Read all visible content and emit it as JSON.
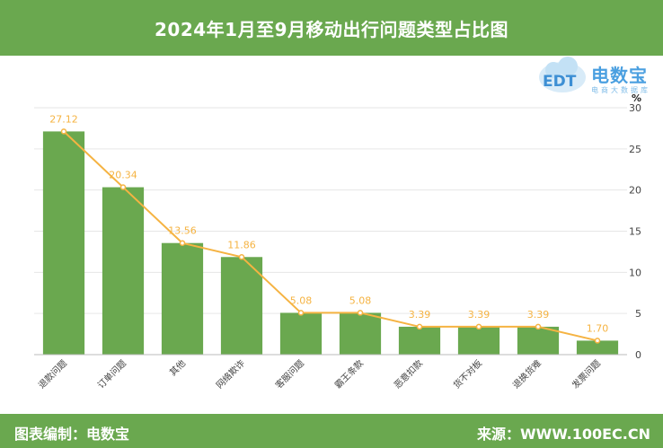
{
  "header": {
    "title": "2024年1月至9月移动出行问题类型占比图"
  },
  "footer": {
    "left": "图表编制：电数宝",
    "right": "来源：WWW.100EC.CN"
  },
  "logo": {
    "text": "电数宝",
    "sub": "电商大数据库",
    "mark": "EDT"
  },
  "colors": {
    "bar": "#6aa84f",
    "line": "#f5b342",
    "header": "#6aa84f"
  },
  "chart_data": {
    "type": "bar",
    "categories": [
      "退款问题",
      "订单问题",
      "其他",
      "网络欺诈",
      "客服问题",
      "霸王条款",
      "恶意扣款",
      "货不对板",
      "退换货难",
      "发票问题"
    ],
    "values": [
      27.12,
      20.34,
      13.56,
      11.86,
      5.08,
      5.08,
      3.39,
      3.39,
      3.39,
      1.7
    ],
    "value_labels": [
      "27.12",
      "20.34",
      "13.56",
      "11.86",
      "5.08",
      "5.08",
      "3.39",
      "3.39",
      "3.39",
      "1.70"
    ],
    "overlay": "line",
    "ylim": [
      0,
      30
    ],
    "yticks": [
      "0",
      "5",
      "10",
      "15",
      "20",
      "25",
      "30"
    ],
    "yaxis_position": "right",
    "yunit": "%",
    "grid": true
  }
}
